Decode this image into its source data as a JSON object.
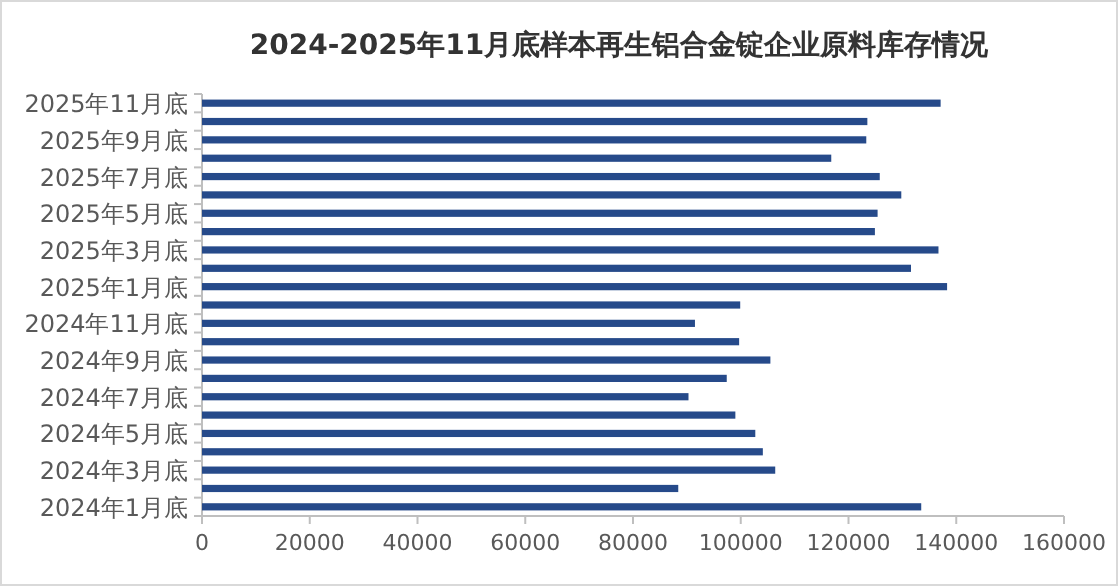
{
  "chart_data": {
    "type": "bar",
    "orientation": "horizontal",
    "title": "2024-2025年11月底样本再生铝合金锭企业原料库存情况",
    "categories": [
      "2025年11月底",
      null,
      "2025年9月底",
      null,
      "2025年7月底",
      null,
      "2025年5月底",
      null,
      "2025年3月底",
      null,
      "2025年1月底",
      null,
      "2024年11月底",
      null,
      "2024年9月底",
      null,
      "2024年7月底",
      null,
      "2024年5月底",
      null,
      "2024年3月底",
      null,
      "2024年1月底"
    ],
    "values": [
      137100,
      123500,
      123300,
      116800,
      125800,
      129800,
      125400,
      124900,
      136700,
      131600,
      138300,
      99900,
      91500,
      99700,
      105500,
      97400,
      90300,
      99000,
      102700,
      104100,
      106400,
      88400,
      133500
    ],
    "color": "#264a8a",
    "xlim": [
      0,
      160000
    ],
    "xticks": [
      0,
      20000,
      40000,
      60000,
      80000,
      100000,
      120000,
      140000,
      160000
    ]
  }
}
